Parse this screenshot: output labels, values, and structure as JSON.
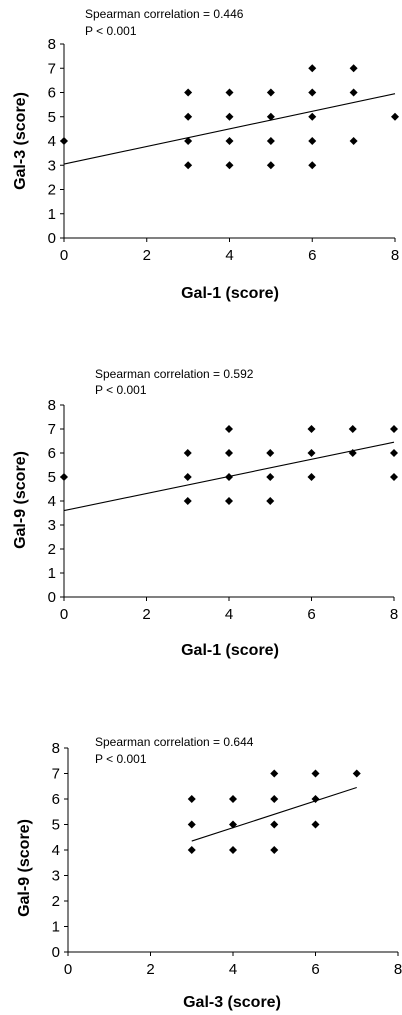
{
  "chart_data": [
    {
      "type": "scatter",
      "annotation_1": "Spearman correlation = 0.446",
      "annotation_2": "P < 0.001",
      "xlabel": "Gal-1 (score)",
      "ylabel": "Gal-3 (score)",
      "xlim": [
        0,
        8
      ],
      "ylim": [
        0,
        8
      ],
      "xticks": [
        "0",
        "2",
        "4",
        "6",
        "8"
      ],
      "yticks": [
        "0",
        "1",
        "2",
        "3",
        "4",
        "5",
        "6",
        "7",
        "8"
      ],
      "points": [
        [
          0,
          4
        ],
        [
          3,
          3
        ],
        [
          3,
          4
        ],
        [
          3,
          5
        ],
        [
          3,
          6
        ],
        [
          4,
          3
        ],
        [
          4,
          4
        ],
        [
          4,
          5
        ],
        [
          4,
          6
        ],
        [
          5,
          3
        ],
        [
          5,
          4
        ],
        [
          5,
          5
        ],
        [
          5,
          6
        ],
        [
          6,
          3
        ],
        [
          6,
          4
        ],
        [
          6,
          5
        ],
        [
          6,
          6
        ],
        [
          6,
          7
        ],
        [
          7,
          4
        ],
        [
          7,
          6
        ],
        [
          7,
          7
        ],
        [
          8,
          5
        ]
      ],
      "trendline": {
        "x": [
          0,
          8
        ],
        "y": [
          3.05,
          5.95
        ]
      },
      "marker_color": "#000000"
    },
    {
      "type": "scatter",
      "annotation_1": "Spearman correlation = 0.592",
      "annotation_2": "P < 0.001",
      "xlabel": "Gal-1 (score)",
      "ylabel": "Gal-9 (score)",
      "xlim": [
        0,
        8
      ],
      "ylim": [
        0,
        8
      ],
      "xticks": [
        "0",
        "2",
        "4",
        "6",
        "8"
      ],
      "yticks": [
        "0",
        "1",
        "2",
        "3",
        "4",
        "5",
        "6",
        "7",
        "8"
      ],
      "points": [
        [
          0,
          5
        ],
        [
          3,
          4
        ],
        [
          3,
          5
        ],
        [
          3,
          6
        ],
        [
          4,
          4
        ],
        [
          4,
          5
        ],
        [
          4,
          6
        ],
        [
          4,
          7
        ],
        [
          5,
          4
        ],
        [
          5,
          5
        ],
        [
          5,
          6
        ],
        [
          6,
          5
        ],
        [
          6,
          6
        ],
        [
          6,
          7
        ],
        [
          7,
          6
        ],
        [
          7,
          7
        ],
        [
          8,
          5
        ],
        [
          8,
          6
        ],
        [
          8,
          7
        ]
      ],
      "trendline": {
        "x": [
          0,
          8
        ],
        "y": [
          3.6,
          6.45
        ]
      },
      "marker_color": "#000000"
    },
    {
      "type": "scatter",
      "annotation_1": "Spearman correlation = 0.644",
      "annotation_2": "P < 0.001",
      "xlabel": "Gal-3 (score)",
      "ylabel": "Gal-9 (score)",
      "xlim": [
        0,
        8
      ],
      "ylim": [
        0,
        8
      ],
      "xticks": [
        "0",
        "2",
        "4",
        "6",
        "8"
      ],
      "yticks": [
        "0",
        "1",
        "2",
        "3",
        "4",
        "5",
        "6",
        "7",
        "8"
      ],
      "points": [
        [
          3,
          4
        ],
        [
          3,
          5
        ],
        [
          3,
          6
        ],
        [
          4,
          4
        ],
        [
          4,
          5
        ],
        [
          4,
          6
        ],
        [
          5,
          4
        ],
        [
          5,
          5
        ],
        [
          5,
          6
        ],
        [
          5,
          7
        ],
        [
          6,
          5
        ],
        [
          6,
          6
        ],
        [
          6,
          7
        ],
        [
          7,
          7
        ]
      ],
      "trendline": {
        "x": [
          3,
          7
        ],
        "y": [
          4.35,
          6.45
        ]
      },
      "marker_color": "#000000"
    }
  ]
}
